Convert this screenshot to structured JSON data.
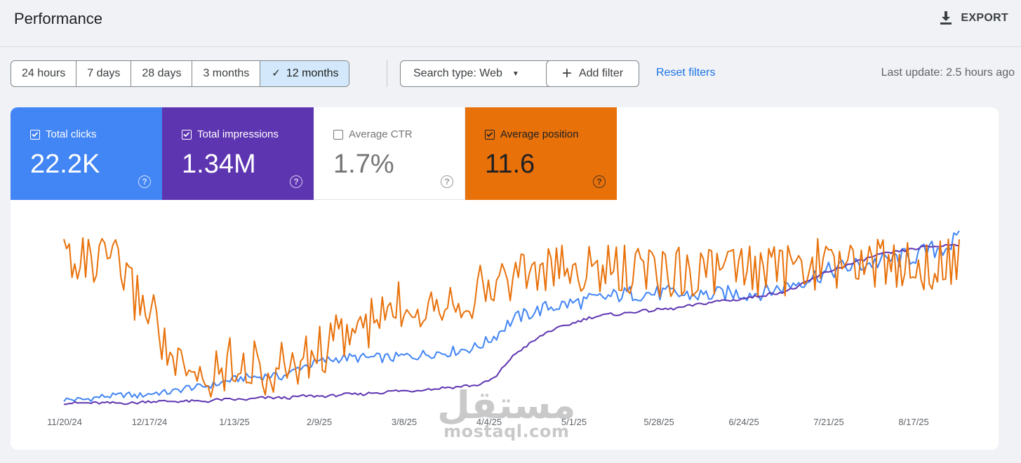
{
  "header": {
    "title": "Performance",
    "export_label": "EXPORT",
    "export_icon": "download-icon"
  },
  "date_ranges": [
    "24 hours",
    "7 days",
    "28 days",
    "3 months",
    "12 months"
  ],
  "selected_range": "12 months",
  "filters": {
    "search_type_label": "Search type: Web",
    "add_filter_label": "Add filter",
    "reset_label": "Reset filters",
    "last_update": "Last update: 2.5 hours ago"
  },
  "metrics": {
    "clicks": {
      "label": "Total clicks",
      "value": "22.2K",
      "checked": true,
      "color": "#4285f4"
    },
    "impressions": {
      "label": "Total impressions",
      "value": "1.34M",
      "checked": true,
      "color": "#5e35b1"
    },
    "ctr": {
      "label": "Average CTR",
      "value": "1.7%",
      "checked": false,
      "color": "#757575"
    },
    "position": {
      "label": "Average position",
      "value": "11.6",
      "checked": true,
      "color": "#e8710a"
    }
  },
  "watermark": {
    "arabic": "مستقل",
    "latin": "mostaql.com"
  },
  "chart_data": {
    "type": "line",
    "x_ticks": [
      "11/20/24",
      "12/17/24",
      "1/13/25",
      "2/9/25",
      "3/8/25",
      "4/4/25",
      "5/1/25",
      "5/28/25",
      "6/24/25",
      "7/21/25",
      "8/17/25"
    ],
    "series": [
      {
        "name": "Total clicks",
        "color": "#4285f4",
        "values": [
          3,
          3,
          3,
          4,
          5,
          5,
          6,
          5,
          6,
          7,
          7,
          8,
          10,
          10,
          11,
          12,
          14,
          15,
          16,
          16,
          17,
          16,
          18,
          22,
          23,
          25,
          26,
          27,
          27,
          27,
          27,
          27,
          27,
          28,
          28,
          29,
          30,
          30,
          31,
          32,
          33,
          36,
          40,
          46,
          50,
          52,
          54,
          56,
          57,
          58,
          59,
          60,
          61,
          62,
          63,
          64,
          64,
          64,
          64,
          64,
          63,
          63,
          63,
          63,
          64,
          64,
          64,
          64,
          65,
          66,
          68,
          70,
          72,
          74,
          76,
          78,
          79,
          80,
          81,
          82,
          83,
          84,
          85,
          86,
          88,
          90,
          92,
          95
        ]
      },
      {
        "name": "Total impressions",
        "color": "#5e35b1",
        "values": [
          1,
          1,
          1,
          1,
          1,
          1,
          1,
          1,
          2,
          2,
          2,
          2,
          2,
          2,
          2,
          3,
          3,
          3,
          3,
          4,
          4,
          4,
          4,
          5,
          5,
          5,
          5,
          6,
          6,
          6,
          7,
          7,
          8,
          8,
          8,
          9,
          9,
          10,
          10,
          11,
          11,
          13,
          16,
          24,
          30,
          34,
          38,
          42,
          44,
          46,
          48,
          50,
          51,
          52,
          52,
          53,
          54,
          54,
          55,
          55,
          56,
          57,
          58,
          59,
          60,
          60,
          61,
          62,
          63,
          64,
          65,
          67,
          70,
          73,
          76,
          78,
          80,
          82,
          84,
          86,
          87,
          88,
          89,
          90,
          91,
          91,
          92,
          92
        ]
      },
      {
        "name": "Average position",
        "color": "#e8710a",
        "values": [
          14,
          15,
          15,
          17,
          15,
          16,
          18,
          21,
          22,
          24,
          30,
          32,
          34,
          33,
          34,
          32,
          31,
          30,
          32,
          31,
          34,
          32,
          31,
          31,
          30,
          29,
          28,
          27,
          26,
          26,
          25,
          24,
          23,
          22,
          22,
          22,
          21,
          21,
          21,
          21,
          20,
          20,
          19,
          18,
          17,
          17,
          17,
          17,
          17,
          17,
          17,
          17,
          17,
          17,
          17,
          17,
          17,
          17,
          17,
          17,
          17,
          17,
          17,
          17,
          17,
          17,
          17,
          17,
          17,
          17,
          17,
          17,
          17,
          16,
          16,
          16,
          16,
          16,
          16,
          16,
          16,
          16,
          16,
          16,
          16,
          16,
          16,
          16
        ]
      }
    ]
  }
}
